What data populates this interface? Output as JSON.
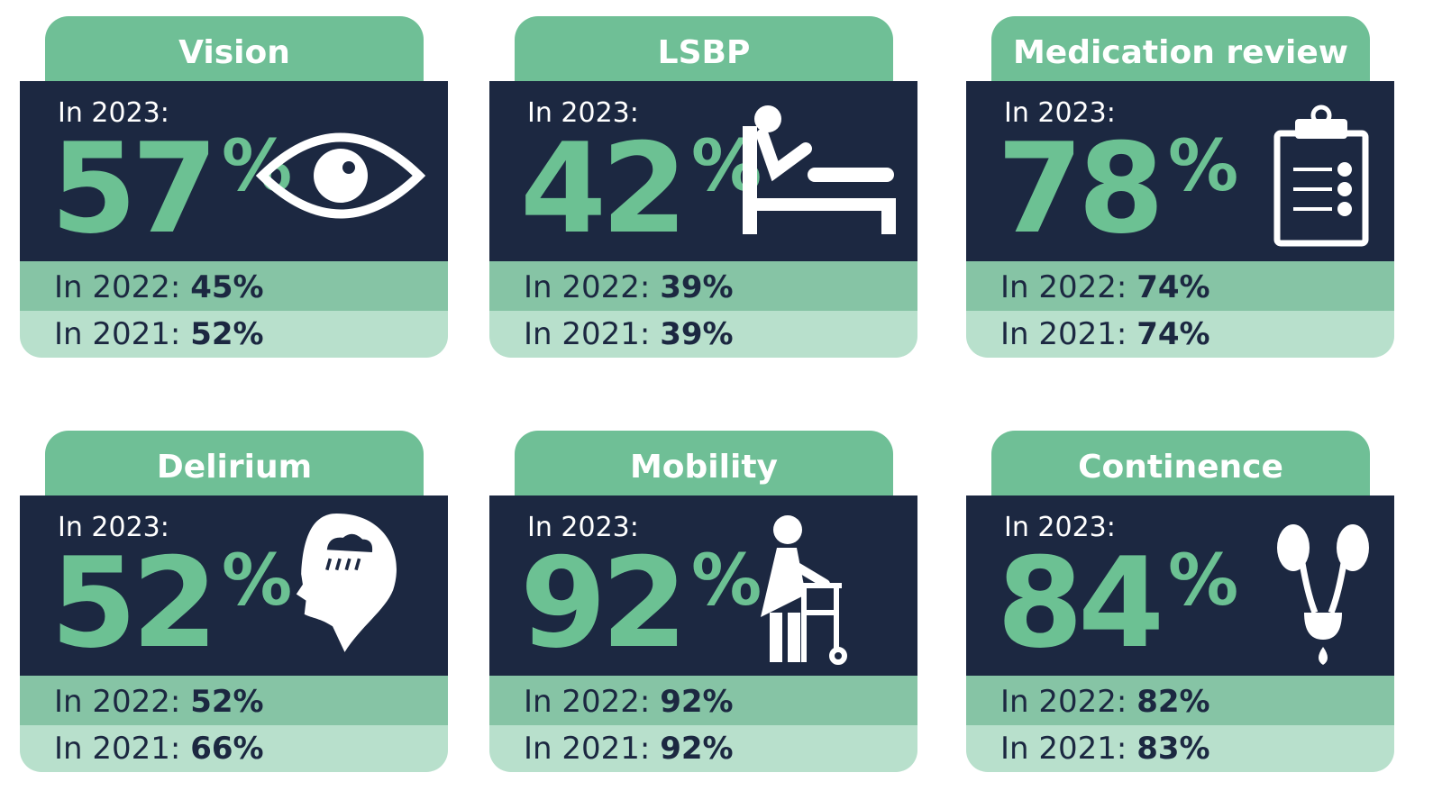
{
  "cards": [
    {
      "title": "Vision",
      "current_label": "In 2023:",
      "value": "57",
      "unit": "%",
      "rows": [
        {
          "label": "In 2022:",
          "value": "45%"
        },
        {
          "label": "In 2021:",
          "value": "52%"
        }
      ]
    },
    {
      "title": "LSBP",
      "current_label": "In 2023:",
      "value": "42",
      "unit": "%",
      "rows": [
        {
          "label": "In 2022:",
          "value": "39%"
        },
        {
          "label": "In 2021:",
          "value": "39%"
        }
      ]
    },
    {
      "title": "Medication review",
      "current_label": "In 2023:",
      "value": "78",
      "unit": "%",
      "rows": [
        {
          "label": "In 2022:",
          "value": "74%"
        },
        {
          "label": "In 2021:",
          "value": "74%"
        }
      ]
    },
    {
      "title": "Delirium",
      "current_label": "In 2023:",
      "value": "52",
      "unit": "%",
      "rows": [
        {
          "label": "In 2022:",
          "value": "52%"
        },
        {
          "label": "In 2021:",
          "value": "66%"
        }
      ]
    },
    {
      "title": "Mobility",
      "current_label": "In 2023:",
      "value": "92",
      "unit": "%",
      "rows": [
        {
          "label": "In 2022:",
          "value": "92%"
        },
        {
          "label": "In 2021:",
          "value": "92%"
        }
      ]
    },
    {
      "title": "Continence",
      "current_label": "In 2023:",
      "value": "84",
      "unit": "%",
      "rows": [
        {
          "label": "In 2022:",
          "value": "82%"
        },
        {
          "label": "In 2021:",
          "value": "83%"
        }
      ]
    }
  ]
}
